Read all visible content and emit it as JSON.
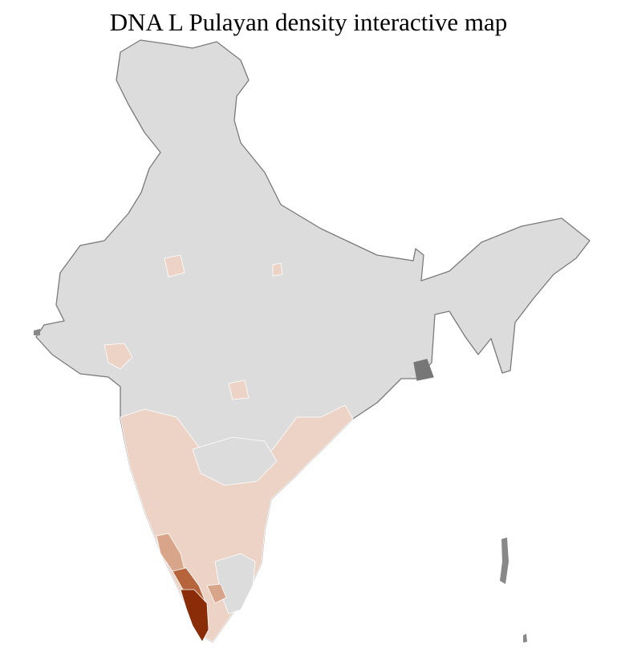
{
  "title": "DNA L Pulayan density interactive map",
  "colors": {
    "no_data": "#dcdcdc",
    "border": "#7a7a7a",
    "district_border": "#ffffff",
    "low": "#ecd3c6",
    "medium": "#d9a58a",
    "high": "#b5643c",
    "very_high": "#8b2c08"
  }
}
